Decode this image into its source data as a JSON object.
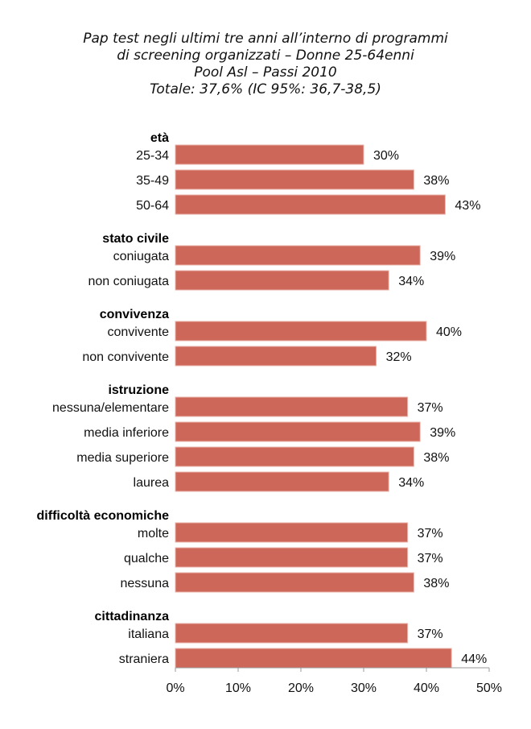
{
  "chart_data": {
    "type": "bar",
    "orientation": "horizontal",
    "title_lines": [
      "Pap test negli ultimi tre anni all’interno di programmi",
      "di screening organizzati – Donne 25-64enni",
      "Pool Asl – Passi 2010",
      "Totale: 37,6% (IC 95%: 36,7-38,5)"
    ],
    "xlabel": "",
    "ylabel": "",
    "xlim": [
      0,
      50
    ],
    "xticks": [
      "0%",
      "10%",
      "20%",
      "30%",
      "40%",
      "50%"
    ],
    "xtick_values": [
      0,
      10,
      20,
      30,
      40,
      50
    ],
    "grid": false,
    "legend": "none",
    "bar_color": "#CD675A",
    "groups": [
      {
        "name": "età",
        "categories": [
          "25-34",
          "35-49",
          "50-64"
        ],
        "values": [
          30,
          38,
          43
        ],
        "labels": [
          "30%",
          "38%",
          "43%"
        ]
      },
      {
        "name": "stato civile",
        "categories": [
          "coniugata",
          "non coniugata"
        ],
        "values": [
          39,
          34
        ],
        "labels": [
          "39%",
          "34%"
        ]
      },
      {
        "name": "convivenza",
        "categories": [
          "convivente",
          "non convivente"
        ],
        "values": [
          40,
          32
        ],
        "labels": [
          "40%",
          "32%"
        ]
      },
      {
        "name": "istruzione",
        "categories": [
          "nessuna/elementare",
          "media inferiore",
          "media superiore",
          "laurea"
        ],
        "values": [
          37,
          39,
          38,
          34
        ],
        "labels": [
          "37%",
          "39%",
          "38%",
          "34%"
        ]
      },
      {
        "name": "difficoltà economiche",
        "categories": [
          "molte",
          "qualche",
          "nessuna"
        ],
        "values": [
          37,
          37,
          38
        ],
        "labels": [
          "37%",
          "37%",
          "38%"
        ]
      },
      {
        "name": "cittadinanza",
        "categories": [
          "italiana",
          "straniera"
        ],
        "values": [
          37,
          44
        ],
        "labels": [
          "37%",
          "44%"
        ]
      }
    ]
  }
}
